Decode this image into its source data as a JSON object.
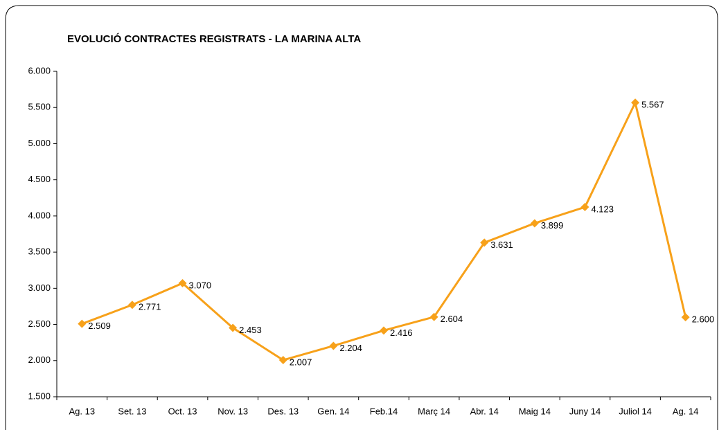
{
  "chart_data": {
    "type": "line",
    "title": "EVOLUCIÓ CONTRACTES REGISTRATS - LA MARINA ALTA",
    "categories": [
      "Ag. 13",
      "Set. 13",
      "Oct. 13",
      "Nov. 13",
      "Des. 13",
      "Gen. 14",
      "Feb.14",
      "Març 14",
      "Abr. 14",
      "Maig 14",
      "Juny 14",
      "Juliol 14",
      "Ag. 14"
    ],
    "series": [
      {
        "name": null,
        "color": "#f7a11a",
        "values": [
          2509,
          2771,
          3070,
          2453,
          2007,
          2204,
          2416,
          2604,
          3631,
          3899,
          4123,
          5567,
          2600
        ],
        "value_labels": [
          "2.509",
          "2.771",
          "3.070",
          "2.453",
          "2.007",
          "2.204",
          "2.416",
          "2.604",
          "3.631",
          "3.899",
          "4.123",
          "5.567",
          "2.600"
        ]
      }
    ],
    "ylim": [
      1500,
      6000
    ],
    "yticks": [
      {
        "value": 1500,
        "label": "1.500"
      },
      {
        "value": 2000,
        "label": "2.000"
      },
      {
        "value": 2500,
        "label": "2.500"
      },
      {
        "value": 3000,
        "label": "3.000"
      },
      {
        "value": 3500,
        "label": "3.500"
      },
      {
        "value": 4000,
        "label": "4.000"
      },
      {
        "value": 4500,
        "label": "4.500"
      },
      {
        "value": 5000,
        "label": "5.000"
      },
      {
        "value": 5500,
        "label": "5.500"
      },
      {
        "value": 6000,
        "label": "6.000"
      }
    ],
    "grid": false
  }
}
